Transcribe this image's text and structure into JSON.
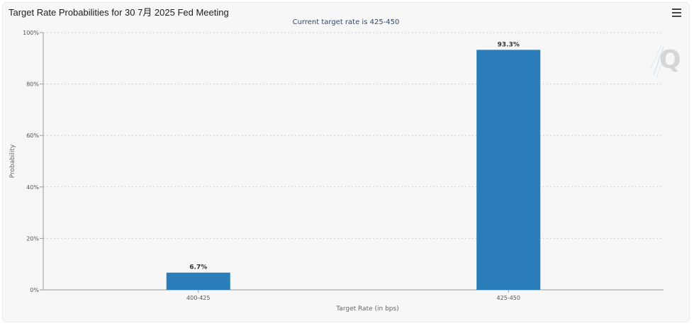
{
  "header": {
    "title": "Target Rate Probabilities for 30 7月 2025 Fed Meeting",
    "menu_icon": "hamburger-menu-icon"
  },
  "logo": {
    "text": "Q"
  },
  "chart_data": {
    "type": "bar",
    "subtitle": "Current target rate is 425-450",
    "categories": [
      "400-425",
      "425-450"
    ],
    "values": [
      6.7,
      93.3
    ],
    "data_labels": [
      "6.7%",
      "93.3%"
    ],
    "xlabel": "Target Rate (in bps)",
    "ylabel": "Probability",
    "ylim": [
      0,
      100
    ],
    "yticks": [
      0,
      20,
      40,
      60,
      80,
      100
    ],
    "ytick_labels": [
      "0%",
      "20%",
      "40%",
      "60%",
      "80%",
      "100%"
    ],
    "grid": true,
    "bar_color": "#2a7db8"
  }
}
